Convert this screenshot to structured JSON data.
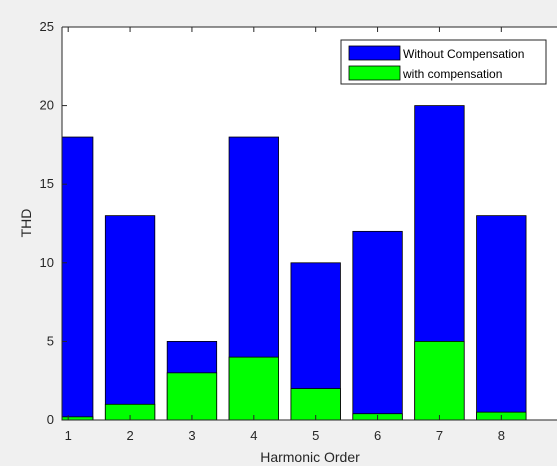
{
  "chart_data": {
    "type": "bar",
    "stacking": "overlaid",
    "categories": [
      "1",
      "2",
      "3",
      "4",
      "5",
      "6",
      "7",
      "8"
    ],
    "series": [
      {
        "name": "Without Compensation",
        "color": "#0000ff",
        "values": [
          18,
          13,
          5,
          18,
          10,
          12,
          20,
          13
        ]
      },
      {
        "name": "with compensation",
        "color": "#00ff00",
        "values": [
          0.2,
          1,
          3,
          4,
          2,
          0.4,
          5,
          0.5
        ]
      }
    ],
    "xlabel": "Harmonic Order",
    "ylabel": "THD",
    "xlim": [
      0.9,
      8.9
    ],
    "ylim": [
      0,
      25
    ],
    "yticks": [
      "0",
      "5",
      "10",
      "15",
      "20",
      "25"
    ],
    "grid": false,
    "legend_position": "top-right"
  }
}
